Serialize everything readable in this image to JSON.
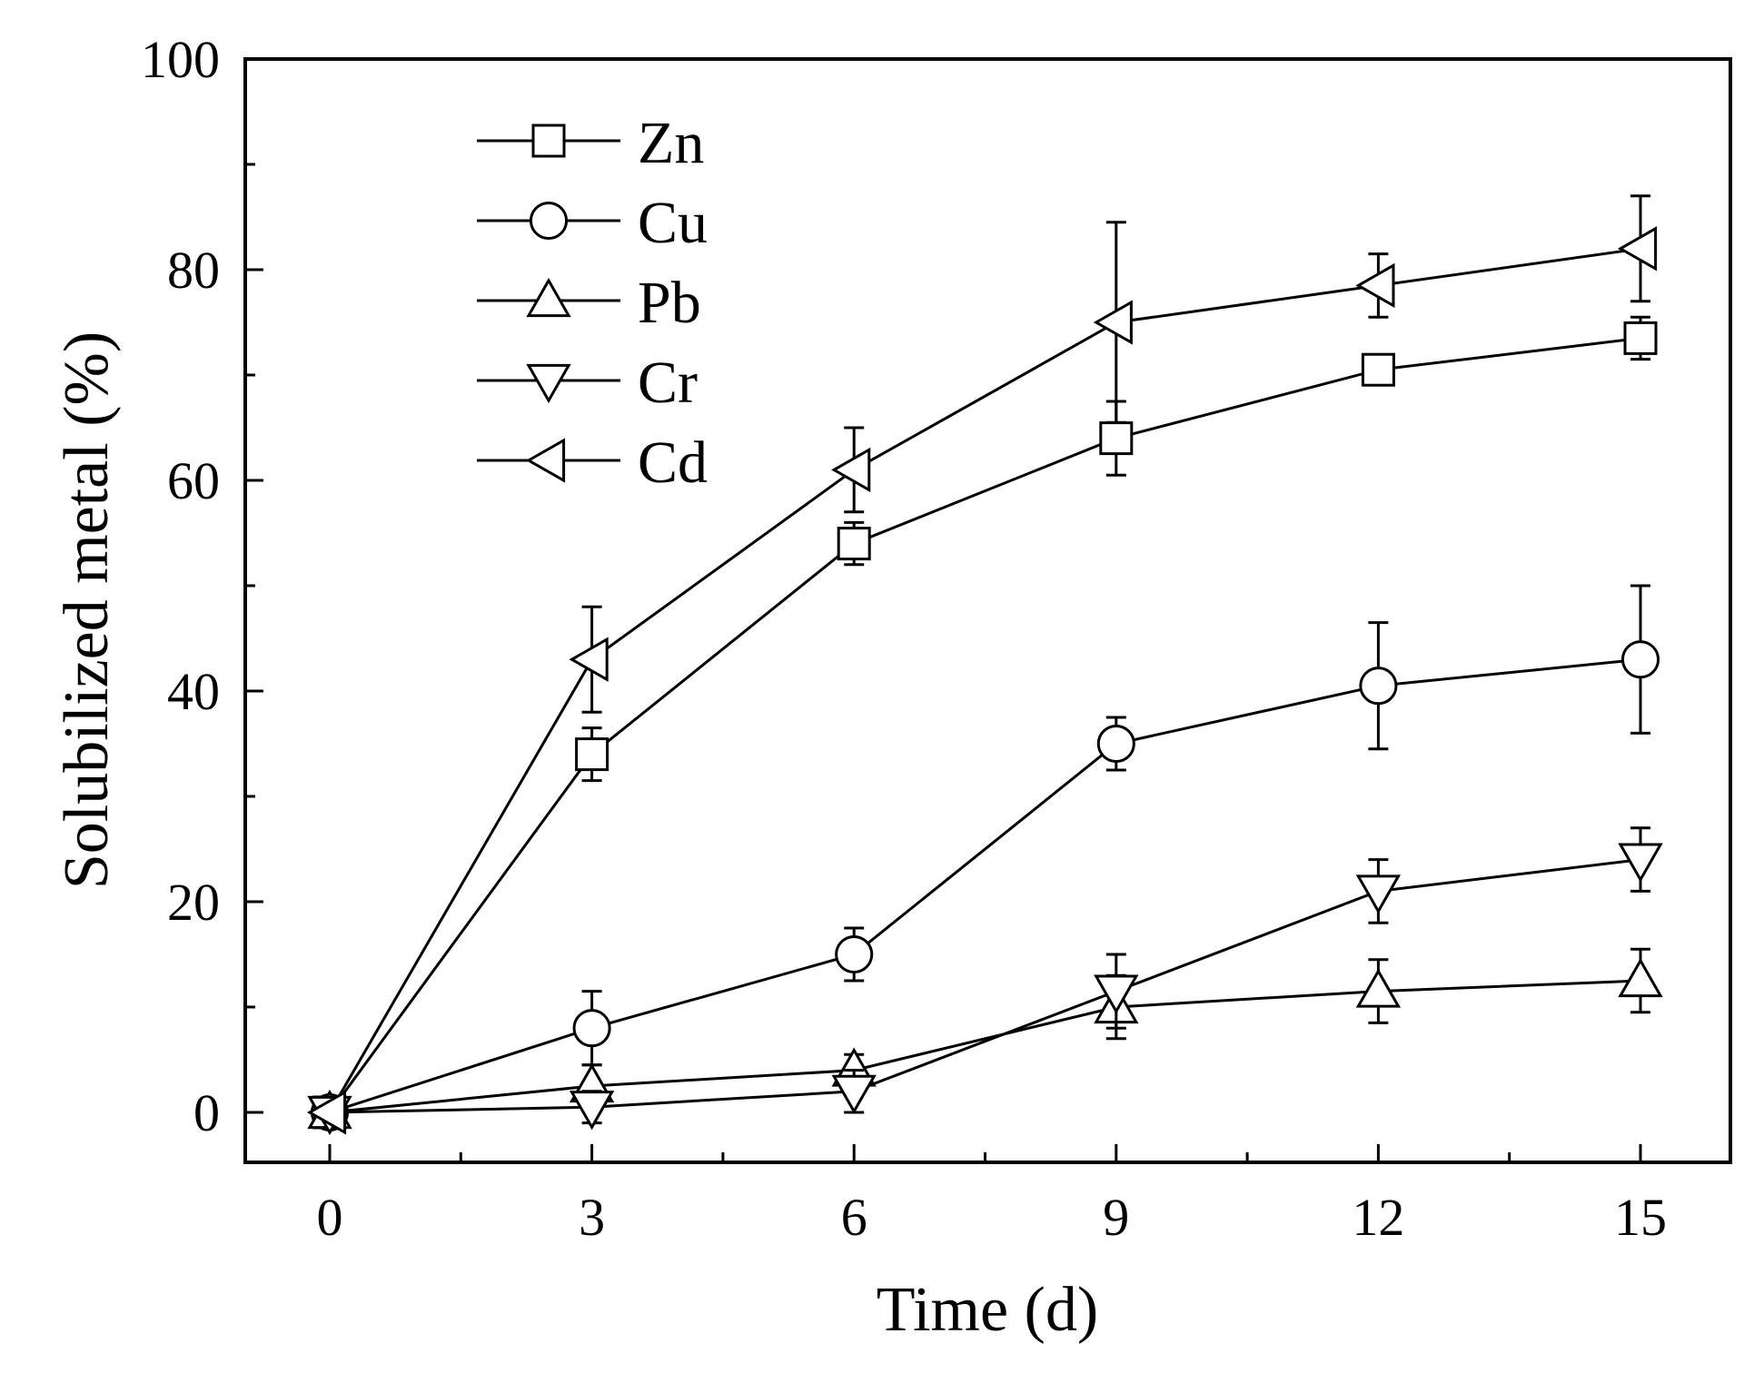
{
  "chart_data": {
    "type": "line",
    "xlabel": "Time (d)",
    "ylabel": "Solubilized metal (%)",
    "xlim": [
      -1,
      16
    ],
    "ylim": [
      -5,
      100
    ],
    "x_ticks": [
      0,
      3,
      6,
      9,
      12,
      15
    ],
    "y_ticks": [
      0,
      20,
      40,
      60,
      80,
      100
    ],
    "x_minor_ticks": [
      1.5,
      4.5,
      7.5,
      10.5,
      13.5
    ],
    "y_minor_ticks": [
      10,
      30,
      50,
      70,
      90
    ],
    "legend_position": "top-left",
    "x": [
      0,
      3,
      6,
      9,
      12,
      15
    ],
    "series": [
      {
        "name": "Zn",
        "marker": "square",
        "values": [
          0,
          34,
          54,
          64,
          70.5,
          73.5
        ],
        "errors": [
          0,
          2.5,
          2,
          3.5,
          1,
          2
        ]
      },
      {
        "name": "Cu",
        "marker": "circle",
        "values": [
          0,
          8,
          15,
          35,
          40.5,
          43
        ],
        "errors": [
          0,
          3.5,
          2.5,
          2.5,
          6,
          7
        ]
      },
      {
        "name": "Pb",
        "marker": "triangle-up",
        "values": [
          0,
          2.5,
          4,
          10,
          11.5,
          12.5
        ],
        "errors": [
          0,
          2,
          1.5,
          3,
          3,
          3
        ]
      },
      {
        "name": "Cr",
        "marker": "triangle-down",
        "values": [
          0,
          0.5,
          2,
          11.5,
          21,
          24
        ],
        "errors": [
          0,
          1.5,
          2,
          3.5,
          3,
          3
        ]
      },
      {
        "name": "Cd",
        "marker": "triangle-left",
        "values": [
          0,
          43,
          61,
          75,
          78.5,
          82
        ],
        "errors": [
          0,
          5,
          4,
          9.5,
          3,
          5
        ]
      }
    ]
  }
}
